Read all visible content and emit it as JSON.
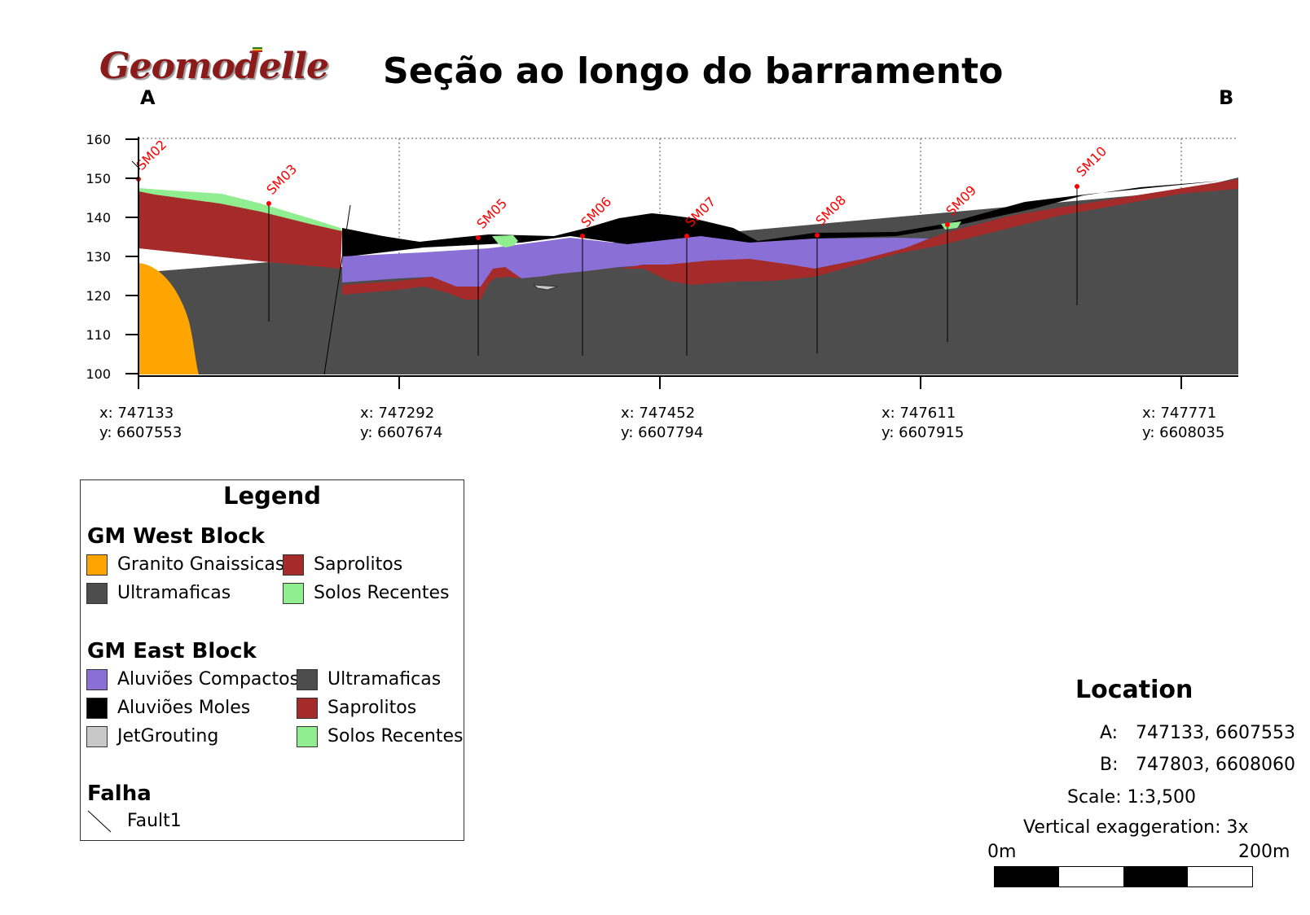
{
  "header": {
    "logo_text": "Geomodelle",
    "title": "Seção ao longo do barramento",
    "end_a": "A",
    "end_b": "B"
  },
  "section": {
    "y_ticks": [
      "160",
      "150",
      "140",
      "130",
      "120",
      "110",
      "100"
    ],
    "y_range": [
      100,
      160
    ],
    "grid": true,
    "x_ticks": [
      {
        "x": "x: 747133",
        "y": "y: 6607553"
      },
      {
        "x": "x: 747292",
        "y": "y: 6607674"
      },
      {
        "x": "x: 747452",
        "y": "y: 6607794"
      },
      {
        "x": "x: 747611",
        "y": "y: 6607915"
      },
      {
        "x": "x: 747771",
        "y": "y: 6608035"
      }
    ],
    "boreholes": [
      "SM02",
      "SM03",
      "SM05",
      "SM06",
      "SM07",
      "SM08",
      "SM09",
      "SM10"
    ],
    "colors": {
      "granito": "#ffa500",
      "ultramaficas": "#4d4d4d",
      "saprolitos": "#a52a2a",
      "solos_recentes": "#90ee90",
      "aluvioes_compactos": "#8a6fd6",
      "aluvioes_moles": "#000000",
      "jetgrouting": "#c8c8c8",
      "borehole": "#ff0000"
    }
  },
  "legend": {
    "title": "Legend",
    "west_block": {
      "title": "GM West Block",
      "items": [
        {
          "label": "Granito Gnaissicas",
          "color": "#ffa500"
        },
        {
          "label": "Saprolitos",
          "color": "#a52a2a"
        },
        {
          "label": "Ultramaficas",
          "color": "#4d4d4d"
        },
        {
          "label": "Solos Recentes",
          "color": "#90ee90"
        }
      ]
    },
    "east_block": {
      "title": "GM East Block",
      "items": [
        {
          "label": "Aluviões Compactos",
          "color": "#8a6fd6"
        },
        {
          "label": "Ultramaficas",
          "color": "#4d4d4d"
        },
        {
          "label": "Aluviões Moles",
          "color": "#000000"
        },
        {
          "label": "Saprolitos",
          "color": "#a52a2a"
        },
        {
          "label": "JetGrouting",
          "color": "#c8c8c8"
        },
        {
          "label": "Solos Recentes",
          "color": "#90ee90"
        }
      ]
    },
    "falha": {
      "title": "Falha",
      "item": "Fault1"
    }
  },
  "location": {
    "title": "Location",
    "a_key": "A:",
    "a_value": "747133, 6607553",
    "b_key": "B:",
    "b_value": "747803, 6608060",
    "scale": "Scale: 1:3,500",
    "exaggeration": "Vertical exaggeration: 3x",
    "scalebar_start": "0m",
    "scalebar_end": "200m"
  }
}
